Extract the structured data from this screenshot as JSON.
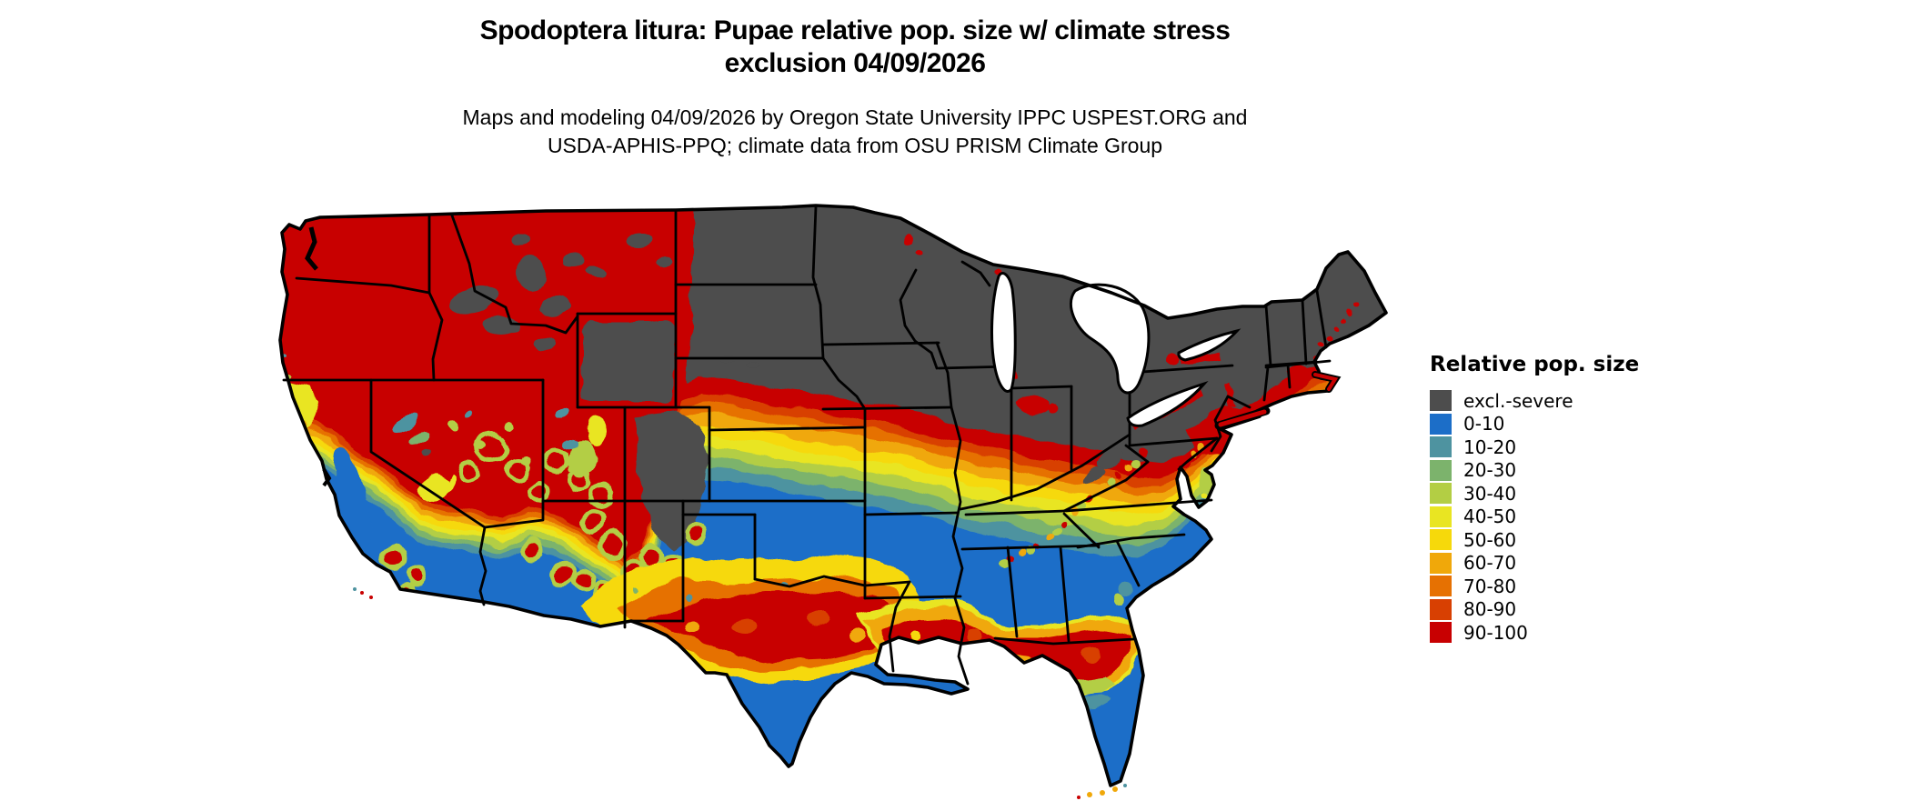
{
  "page": {
    "background": "#ffffff"
  },
  "title": {
    "line1": "Spodoptera litura: Pupae relative pop. size w/ climate stress",
    "line2": "exclusion 04/09/2026"
  },
  "subtitle": {
    "line1": "Maps and modeling 04/09/2026 by Oregon State University IPPC USPEST.ORG and",
    "line2": "USDA-APHIS-PPQ; climate data from OSU PRISM Climate Group"
  },
  "legend": {
    "title": "Relative pop. size",
    "entries": [
      {
        "key": "excl",
        "label": "excl.-severe",
        "color": "#4D4D4D"
      },
      {
        "key": "b0_10",
        "label": "0-10",
        "color": "#1C6EC8"
      },
      {
        "key": "b10_20",
        "label": "10-20",
        "color": "#4E93A0"
      },
      {
        "key": "b20_30",
        "label": "20-30",
        "color": "#7CB36C"
      },
      {
        "key": "b30_40",
        "label": "30-40",
        "color": "#B3CE44"
      },
      {
        "key": "b40_50",
        "label": "40-50",
        "color": "#E9E522"
      },
      {
        "key": "b50_60",
        "label": "50-60",
        "color": "#F6D90B"
      },
      {
        "key": "b60_70",
        "label": "60-70",
        "color": "#F0A80A"
      },
      {
        "key": "b70_80",
        "label": "70-80",
        "color": "#E67102"
      },
      {
        "key": "b80_90",
        "label": "80-90",
        "color": "#D84002"
      },
      {
        "key": "b90_100",
        "label": "90-100",
        "color": "#C80001"
      }
    ]
  },
  "map": {
    "region": "Continental United States",
    "type": "raster choropleth with state boundaries",
    "boundary_color": "#000000",
    "water_color": "#ffffff"
  }
}
